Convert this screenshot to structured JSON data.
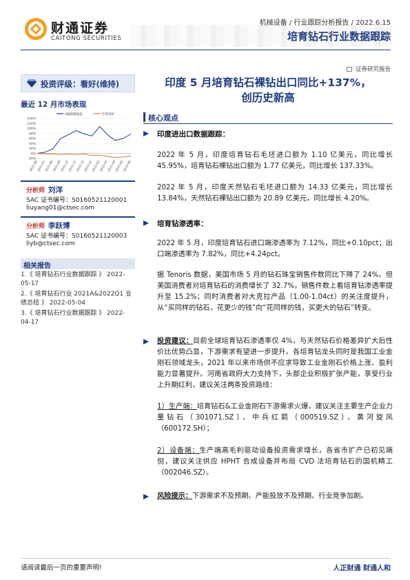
{
  "header": {
    "logo_cn": "财通证券",
    "logo_en": "CAITONG SECURITIES",
    "meta": "机械设备 / 行业跟踪分析报告 / 2022.6.15",
    "title": "培育钻石行业数据跟踪",
    "report_type": "证券研究报告"
  },
  "sidebar": {
    "rating": "投资评级：看好(维持)",
    "chart_section_title": "最近 12 月市场表现",
    "analysts": [
      {
        "role": "分析师",
        "name": "刘洋",
        "sac": "SAC 证书编号：S0160521120001",
        "email": "liuyang01@ctsec.com"
      },
      {
        "role": "分析师",
        "name": "李跃博",
        "sac": "SAC 证书编号：S0160521120003",
        "email": "liyb@ctsec.com"
      }
    ],
    "related_title": "相关报告",
    "related": [
      "1.《 培育钻石行业数据跟踪 》 2022-05-17",
      "2.《 培育钻石行业 2021A&2022Q1 业绩总结 》 2022-05-04",
      "3.《 培育钻石行业数据跟踪 》 2022-04-17"
    ]
  },
  "chart_data": {
    "type": "line",
    "title": "",
    "xlabel": "",
    "ylabel": "",
    "ylim": [
      -20,
      140
    ],
    "yticks": [
      "140%",
      "120%",
      "100%",
      "80%",
      "60%",
      "40%",
      "20%",
      "0%",
      "-20%"
    ],
    "x": [
      "2021-06",
      "2021-07",
      "2021-08",
      "2021-09",
      "2021-10",
      "2021-11",
      "2021-12",
      "2022-01",
      "2022-02",
      "2022-03",
      "2022-04",
      "2022-05",
      "2022-06"
    ],
    "series": [
      {
        "name": "A股培育钻石",
        "color": "#1f3b82",
        "values": [
          0,
          5,
          18,
          60,
          75,
          92,
          78,
          70,
          108,
          75,
          52,
          60,
          78
        ]
      },
      {
        "name": "沪深300",
        "color": "#c9803a",
        "values": [
          0,
          -2,
          -3,
          -4,
          -3,
          -4,
          -2,
          -8,
          -7,
          -12,
          -16,
          -14,
          -10
        ]
      }
    ]
  },
  "main": {
    "title_line1": "印度 5 月培育钻石裸钻出口同比+137%，",
    "title_line2": "创历史新高",
    "core_title": "核心观点",
    "s1_head": "印度进出口数据跟踪：",
    "p1": "2022 年 5 月，印度培育钻石毛坯进口额为 1.10 亿美元，同比增长 45.95%，培育钻石裸钻出口额为 1.77 亿美元，同比增长 137.33%。",
    "p2": "2022 年 5 月，印度天然钻石毛坯进口额为 14.33 亿美元，同比增长 13.84%，天然钻石裸钻出口额为 20.89 亿美元，同比增长 4.20%。",
    "s2_head": "培育钻渗透率：",
    "p3": "2022 年 5 月，印度培育钻石进口端渗透率为 7.12%，同比+0.10pct；出口端渗透率为 7.82%，同比+4.24pct。",
    "p4": "据 Tenoris 数据，美国市场 5 月的钻石珠宝销售件数同比下降了 24%。但美国消费者对培育钻石的消费增长了 32.7%，销售件数上看培育钻渗透率提升至 15.2%；同时消费者对大克拉产品（1.00-1.04ct）的关注度提升，从“买同样的钻石，花更少的钱”向“花同样的钱，买更大的钻石”转变。",
    "s3_label": "投资建议：",
    "p5": "目前全球培育钻石渗透率仅 4%，与天然钻石价格差异扩大后性价比优势凸显，下游需求有望进一步提升。各培育钻龙头同时是我国工业金刚石领域龙头，2021 年以来市场供不应求导致工业金刚石价格上涨、盈利能力显著提升。河南省政府大力支持下，头部企业积极扩张产能，享受行业上升期红利，建议关注两条投资路线：",
    "p6_label": "1）生产端：",
    "p6_text": "培育钻石&工业金刚石下游需求火爆，建议关注主要生产企业力量钻石（301071.SZ）、中兵红箭（000519.SZ）、黄河旋风（600172.SH）；",
    "p7_label": "2）设备端：",
    "p7_text": "生产端高毛利驱动设备投资需求增长，各省市扩产已初见端倪，建议关注供应 HPHT 合成设备并布局 CVD 法培育钻石的国机精工（002046.SZ）。",
    "s4_label": "风险提示：",
    "p8": "下游需求不及预期、产能投放不及预期、行业竞争加剧。"
  },
  "footer": {
    "left": "请阅读最后一页的重要声明!",
    "right": "人正财通 财通人和"
  }
}
